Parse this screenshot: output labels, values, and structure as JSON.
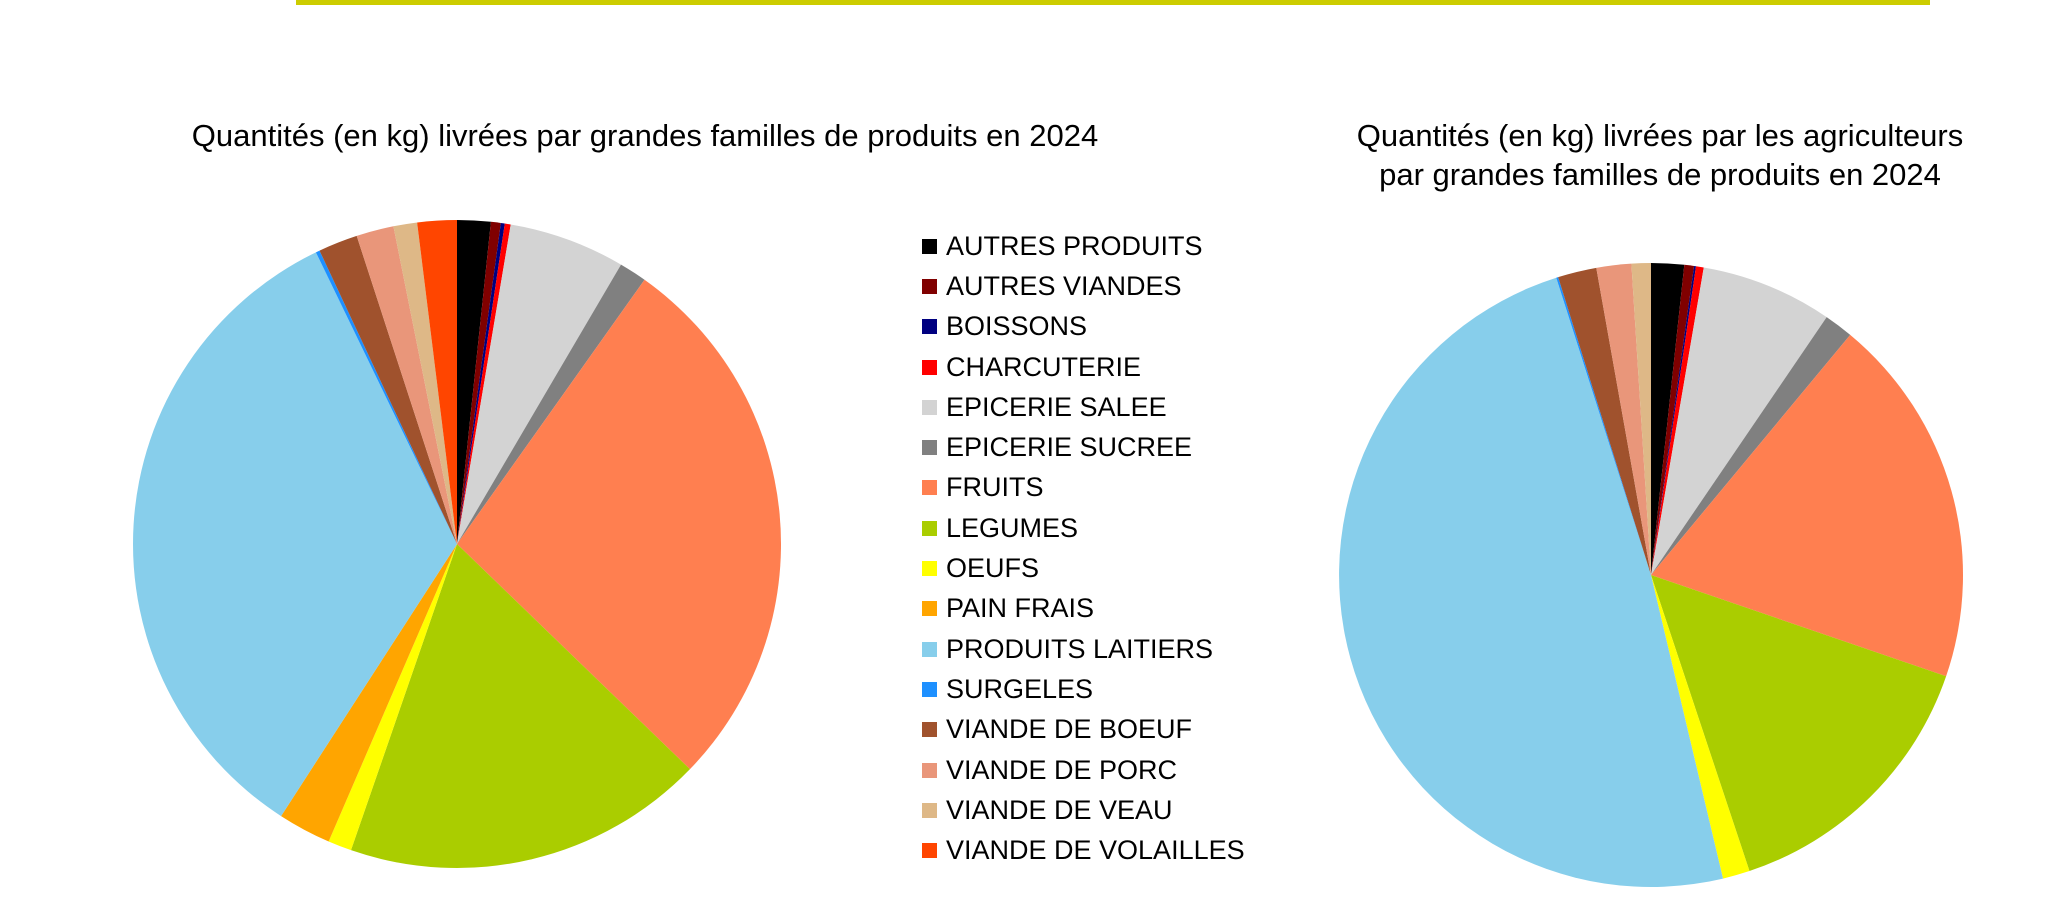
{
  "colors": {
    "rule": "#cccc00",
    "categories": [
      "#000000",
      "#800000",
      "#000080",
      "#ff0000",
      "#d3d3d3",
      "#808080",
      "#ff7f50",
      "#aacd00",
      "#ffff00",
      "#ffa500",
      "#87ceeb",
      "#1e90ff",
      "#a0522d",
      "#e9967a",
      "#deb887",
      "#ff4500"
    ]
  },
  "legend": {
    "placement": "center",
    "items": [
      "AUTRES PRODUITS",
      "AUTRES VIANDES",
      "BOISSONS",
      "CHARCUTERIE",
      "EPICERIE SALEE",
      "EPICERIE SUCREE",
      "FRUITS",
      "LEGUMES",
      "OEUFS",
      "PAIN FRAIS",
      "PRODUITS LAITIERS",
      "SURGELES",
      "VIANDE DE BOEUF",
      "VIANDE DE PORC",
      "VIANDE DE VEAU",
      "VIANDE DE VOLAILLES"
    ]
  },
  "chart_data": [
    {
      "type": "pie",
      "title": "Quantités (en kg) livrées par grandes familles de produits en 2024",
      "categories": [
        "AUTRES PRODUITS",
        "AUTRES VIANDES",
        "BOISSONS",
        "CHARCUTERIE",
        "EPICERIE SALEE",
        "EPICERIE SUCREE",
        "FRUITS",
        "LEGUMES",
        "OEUFS",
        "PAIN FRAIS",
        "PRODUITS LAITIERS",
        "SURGELES",
        "VIANDE DE BOEUF",
        "VIANDE DE PORC",
        "VIANDE DE VEAU",
        "VIANDE DE VOLAILLES"
      ],
      "values": [
        1.7,
        0.5,
        0.2,
        0.3,
        5.9,
        1.4,
        27.9,
        18.4,
        1.2,
        2.7,
        34.3,
        0.2,
        2.0,
        1.9,
        1.2,
        2.0
      ],
      "unit": "%"
    },
    {
      "type": "pie",
      "title": "Quantités (en kg) livrées par les agriculteurs par grandes familles de produits en 2024",
      "categories": [
        "AUTRES PRODUITS",
        "AUTRES VIANDES",
        "BOISSONS",
        "CHARCUTERIE",
        "EPICERIE SALEE",
        "EPICERIE SUCREE",
        "FRUITS",
        "LEGUMES",
        "OEUFS",
        "PAIN FRAIS",
        "PRODUITS LAITIERS",
        "SURGELES",
        "VIANDE DE BOEUF",
        "VIANDE DE PORC",
        "VIANDE DE VEAU",
        "VIANDE DE VOLAILLES"
      ],
      "values": [
        1.7,
        0.5,
        0.1,
        0.4,
        6.8,
        1.5,
        19.2,
        14.6,
        1.4,
        0.0,
        48.7,
        0.1,
        2.0,
        1.8,
        1.0,
        0.0
      ],
      "unit": "%"
    }
  ]
}
